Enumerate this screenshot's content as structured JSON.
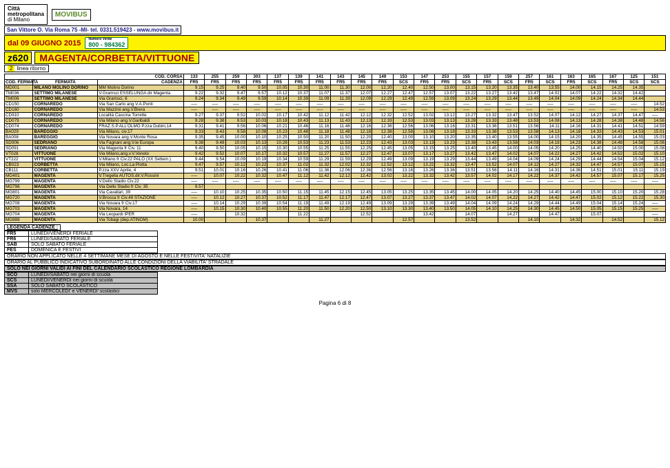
{
  "header": {
    "cm_line1": "Città",
    "cm_line2": "metropolitana",
    "cm_line3": "di Milano",
    "movibus": "MOVIBUS",
    "address": "San Vittore O. Via Roma 75 -MI- tel. 0331.519423 - www.movibus.it",
    "date_from": "dal 09 GIUGNO 2015",
    "call_label": "Numero Verde",
    "call_num": "800 - 984362",
    "line_code": "z620",
    "line_name": "MAGENTA/CORBETTA/VITTUONE",
    "line_sub_num": "2",
    "line_sub_txt": "linea ritorno"
  },
  "table": {
    "hdr_corsa": "COD. CORSA",
    "hdr_codferm": "COD. FERMATA",
    "hdr_ferm": "FERMATA",
    "hdr_cadenza": "CADENZA",
    "corsa": [
      "133",
      "255",
      "259",
      "303",
      "137",
      "139",
      "141",
      "143",
      "145",
      "149",
      "153",
      "147",
      "253",
      "155",
      "157",
      "159",
      "257",
      "161",
      "163",
      "165",
      "167",
      "125",
      "151"
    ],
    "cadenza": [
      "FR5",
      "FR5",
      "FR5",
      "FR5",
      "FR5",
      "FR5",
      "FR5",
      "FR5",
      "FR5",
      "FR5",
      "SCS",
      "FR5",
      "FR5",
      "SCS",
      "FR5",
      "SCS",
      "FR5",
      "SCS",
      "FR5",
      "SCS",
      "FR5",
      "SCS",
      "SCS"
    ],
    "rows": [
      {
        "alt": true,
        "code": "MD001",
        "stop": "MILANO MOLINO DORINO",
        "via": "MM Molino Dorino",
        "t": [
          "9.15",
          "9.25",
          "9.40",
          "9.50",
          "10.05",
          "10.30",
          "11.00",
          "11.30",
          "12.00",
          "12.20",
          "12.40",
          "12.50",
          "13.00",
          "13.15",
          "13.20",
          "13.35",
          "13.40",
          "13.55",
          "14.00",
          "14.15",
          "14.25",
          "14.35",
          ""
        ]
      },
      {
        "alt": false,
        "code": "TM036",
        "stop": "SETTIMO MILANESE",
        "via": "V.Gramsci ESSELUNGA dir Magenta",
        "t": [
          "9.22",
          "9.32",
          "9.47",
          "9.57",
          "10.12",
          "10.37",
          "11.07",
          "11.37",
          "12.07",
          "12.27",
          "12.47",
          "12.57",
          "13.07",
          "13.22",
          "13.27",
          "13.42",
          "13.47",
          "14.02",
          "14.07",
          "14.22",
          "14.32",
          "14.42",
          ""
        ]
      },
      {
        "alt": true,
        "code": "TM006",
        "stop": "SETTIMO MILANESE",
        "via": "Via Gramsci, 6",
        "t": [
          "9.24",
          "9.34",
          "9.49",
          "9.59",
          "10.14",
          "10.39",
          "11.09",
          "11.39",
          "12.09",
          "12.29",
          "12.49",
          "12.59",
          "13.09",
          "13.24",
          "13.29",
          "13.44",
          "13.49",
          "14.04",
          "14.09",
          "14.24",
          "14.34",
          "14.44",
          ""
        ]
      },
      {
        "alt": false,
        "code": "CD150",
        "stop": "CORNAREDO",
        "via": "Via San Carlo ang.V.A.Ponti",
        "t": [
          "-----",
          "-----",
          "-----",
          "-----",
          "-----",
          "-----",
          "-----",
          "-----",
          "-----",
          "-----",
          "-----",
          "-----",
          "-----",
          "-----",
          "-----",
          "-----",
          "-----",
          "-----",
          "-----",
          "-----",
          "-----",
          "-----",
          "14.52"
        ]
      },
      {
        "alt": true,
        "code": "CD160",
        "stop": "CORNAREDO",
        "via": "Via Mazzini ang.V.Brera",
        "t": [
          "-----",
          "-----",
          "-----",
          "-----",
          "-----",
          "-----",
          "-----",
          "-----",
          "-----",
          "-----",
          "-----",
          "-----",
          "-----",
          "-----",
          "-----",
          "-----",
          "-----",
          "-----",
          "-----",
          "-----",
          "-----",
          "-----",
          "14.53"
        ]
      },
      {
        "alt": false,
        "code": "CD910",
        "stop": "CORNAREDO",
        "via": "Località Cascina Torrette",
        "t": [
          "9.27",
          "9.37",
          "9.52",
          "10.02",
          "10.17",
          "10.42",
          "11.12",
          "11.42",
          "12.12",
          "12.32",
          "12.52",
          "13.02",
          "13.12",
          "13.27",
          "13.32",
          "13.47",
          "13.52",
          "14.07",
          "14.12",
          "14.27",
          "14.37",
          "14.47",
          "-----"
        ]
      },
      {
        "alt": true,
        "code": "CD079",
        "stop": "CORNAREDO",
        "via": "Via Milano ang.V.Garibaldi",
        "t": [
          "9.28",
          "9.38",
          "9.53",
          "10.03",
          "10.18",
          "10.43",
          "11.13",
          "11.43",
          "12.13",
          "12.33",
          "12.53",
          "13.03",
          "13.13",
          "13.28",
          "13.33",
          "13.48",
          "13.53",
          "14.08",
          "14.13",
          "14.28",
          "14.38",
          "14.48",
          "14.56"
        ]
      },
      {
        "alt": false,
        "code": "CD074",
        "stop": "CORNAREDO",
        "via": "FRAZ.S.P.ALL'OLMO P.zza Dubini,14",
        "t": [
          "9.31",
          "9.41",
          "9.56",
          "10.06",
          "10.21",
          "10.46",
          "11.16",
          "11.46",
          "12.16",
          "12.36",
          "12.56",
          "13.06",
          "13.16",
          "13.31",
          "13.36",
          "13.51",
          "13.56",
          "14.11",
          "14.16",
          "14.31",
          "14.41",
          "14.51",
          "14.59"
        ]
      },
      {
        "alt": true,
        "code": "BA029",
        "stop": "BAREGGIO",
        "via": "Via Milano, civ.17",
        "t": [
          "9.33",
          "9.43",
          "9.58",
          "10.08",
          "10.23",
          "10.48",
          "11.18",
          "11.48",
          "12.18",
          "12.38",
          "12.58",
          "13.08",
          "13.18",
          "13.33",
          "13.38",
          "13.53",
          "13.58",
          "14.13",
          "14.18",
          "14.33",
          "14.43",
          "14.53",
          "15.01"
        ]
      },
      {
        "alt": false,
        "code": "BA008",
        "stop": "BAREGGIO",
        "via": "Via Novara ang.V.Monte Rosa",
        "t": [
          "9.35",
          "9.45",
          "10.00",
          "10.10",
          "10.25",
          "10.50",
          "11.20",
          "11.50",
          "12.20",
          "12.40",
          "13.00",
          "13.10",
          "13.20",
          "13.35",
          "13.40",
          "13.55",
          "14.00",
          "14.15",
          "14.20",
          "14.35",
          "14.45",
          "14.55",
          "15.03"
        ]
      },
      {
        "alt": true,
        "code": "SD006",
        "stop": "SEDRIANO",
        "via": "Via Fagnani ang.V.le Europa",
        "t": [
          "9.38",
          "9.48",
          "10.03",
          "10.13",
          "10.28",
          "10.53",
          "11.23",
          "11.53",
          "12.23",
          "12.43",
          "13.03",
          "13.13",
          "13.23",
          "13.38",
          "13.43",
          "13.58",
          "14.03",
          "14.18",
          "14.23",
          "14.38",
          "14.48",
          "14.58",
          "15.06"
        ]
      },
      {
        "alt": false,
        "code": "SD091",
        "stop": "SEDRIANO",
        "via": "Via Magenta fr Civ. 11",
        "t": [
          "9.40",
          "9.50",
          "10.05",
          "10.15",
          "10.30",
          "10.55",
          "11.25",
          "11.55",
          "12.25",
          "12.45",
          "13.05",
          "13.15",
          "13.25",
          "13.40",
          "13.45",
          "14.00",
          "14.05",
          "14.20",
          "14.25",
          "14.40",
          "14.50",
          "15.00",
          "15.08"
        ]
      },
      {
        "alt": true,
        "code": "VT028",
        "stop": "VITTUONE",
        "via": "Via Milano,ang.v.V.Veneto",
        "t": [
          "9.42",
          "9.52",
          "10.07",
          "10.17",
          "10.32",
          "10.57",
          "11.27",
          "11.57",
          "12.27",
          "12.47",
          "13.07",
          "13.17",
          "13.27",
          "13.42",
          "13.47",
          "14.02",
          "14.07",
          "14.22",
          "14.27",
          "14.42",
          "14.52",
          "15.02",
          "15.10"
        ]
      },
      {
        "alt": false,
        "code": "VT222",
        "stop": "VITTUONE",
        "via": "V.Milano fr Civ.22 PALO (XX Settem.)",
        "t": [
          "9.44",
          "9.54",
          "10.09",
          "10.19",
          "10.34",
          "10.59",
          "11.29",
          "11.59",
          "12.29",
          "12.49",
          "13.09",
          "13.19",
          "13.29",
          "13.44",
          "13.49",
          "14.04",
          "14.09",
          "14.24",
          "14.29",
          "14.44",
          "14.54",
          "15.04",
          "15.12"
        ]
      },
      {
        "alt": true,
        "code": "CB023",
        "stop": "CORBETTA",
        "via": "Via Milano, Loc.La Piotta",
        "t": [
          "9.47",
          "9.57",
          "10.12",
          "10.22",
          "10.37",
          "11.02",
          "11.32",
          "12.02",
          "12.32",
          "12.52",
          "13.12",
          "13.22",
          "13.32",
          "13.47",
          "13.52",
          "14.07",
          "14.12",
          "14.27",
          "14.32",
          "14.47",
          "14.57",
          "15.07",
          "15.15"
        ]
      },
      {
        "alt": false,
        "code": "CB111",
        "stop": "CORBETTA",
        "via": "P.zza XXV Aprile, 4",
        "t": [
          "9.51",
          "10.01",
          "10.16",
          "10.26",
          "10.41",
          "11.06",
          "11.36",
          "12.06",
          "12.36",
          "12.56",
          "13.16",
          "13.26",
          "13.36",
          "13.51",
          "13.56",
          "14.11",
          "14.16",
          "14.31",
          "14.36",
          "14.51",
          "15.01",
          "15.11",
          "15.19"
        ]
      },
      {
        "alt": true,
        "code": "MG401",
        "stop": "MAGENTA",
        "via": "V.Tregella AUTOS.dir.V.Rossini",
        "t": [
          "-----",
          "10.07",
          "10.22",
          "10.32",
          "10.47",
          "11.12",
          "11.42",
          "12.12",
          "12.42",
          "13.02",
          "13.22",
          "13.32",
          "13.42",
          "13.57",
          "14.02",
          "14.17",
          "14.22",
          "14.37",
          "14.42",
          "14.57",
          "15.07",
          "15.17",
          "15.25"
        ]
      },
      {
        "alt": false,
        "code": "MG799",
        "stop": "MAGENTA",
        "via": "V.Dello Stadio Civ.22",
        "t": [
          "-----",
          "-----",
          "-----",
          "-----",
          "-----",
          "-----",
          "-----",
          "-----",
          "-----",
          "-----",
          "-----",
          "-----",
          "-----",
          "-----",
          "-----",
          "-----",
          "-----",
          "-----",
          "-----",
          "-----",
          "-----",
          "-----",
          "-----"
        ]
      },
      {
        "alt": true,
        "code": "MG796",
        "stop": "MAGENTA",
        "via": "Via Dello Stadio fr Civ. 35",
        "t": [
          "9.57",
          "",
          "",
          "",
          "",
          "",
          "",
          "",
          "",
          "",
          "",
          "",
          "",
          "",
          "",
          "",
          "",
          "",
          "",
          "",
          "",
          "",
          ""
        ]
      },
      {
        "alt": false,
        "code": "MG801",
        "stop": "MAGENTA",
        "via": "Via Cavallari, 39",
        "t": [
          "-----",
          "10.10",
          "10.25",
          "10.35",
          "10.50",
          "11.15",
          "11.45",
          "12.15",
          "12.45",
          "13.05",
          "13.25",
          "13.35",
          "13.45",
          "14.00",
          "14.05",
          "14.20",
          "14.25",
          "14.40",
          "14.45",
          "15.00",
          "15.10",
          "15.20",
          "15.28"
        ]
      },
      {
        "alt": true,
        "code": "MG720",
        "stop": "MAGENTA",
        "via": "V.Brocca fr Civ.49 STAZIONE",
        "t": [
          "-----",
          "10.12",
          "10.27",
          "10.37",
          "10.52",
          "11.17",
          "11.47",
          "12.17",
          "12.47",
          "13.07",
          "13.27",
          "13.37",
          "13.47",
          "14.02",
          "14.07",
          "14.22",
          "14.27",
          "14.42",
          "14.47",
          "15.02",
          "15.12",
          "15.22",
          "15.30"
        ]
      },
      {
        "alt": false,
        "code": "MG708",
        "stop": "MAGENTA",
        "via": "Via Novara fr Civ.17",
        "t": [
          "-----",
          "10.14",
          "10.29",
          "10.39",
          "10.54",
          "11.19",
          "11.49",
          "12.19",
          "12.49",
          "13.09",
          "13.29",
          "13.39",
          "13.49",
          "14.04",
          "14.09",
          "14.24",
          "14.29",
          "14.44",
          "14.49",
          "15.04",
          "15.14",
          "15.24",
          "-----"
        ]
      },
      {
        "alt": true,
        "code": "MG703",
        "stop": "MAGENTA",
        "via": "Via Novara, 14",
        "t": [
          "-----",
          "10.15",
          "10.30",
          "10.40",
          "10.55",
          "11.20",
          "11.50",
          "12.20",
          "12.50",
          "13.10",
          "13.30",
          "13.40",
          "13.50",
          "14.05",
          "14.10",
          "14.25",
          "14.30",
          "14.45",
          "14.50",
          "15.05",
          "15.15",
          "15.25",
          "-----"
        ]
      },
      {
        "alt": false,
        "code": "MG704",
        "stop": "MAGENTA",
        "via": "Via Leopardi IPER",
        "t": [
          "-----",
          "",
          "10.32",
          "",
          "",
          "11.22",
          "",
          "",
          "12.52",
          "",
          "",
          "13.42",
          "",
          "14.07",
          "",
          "14.27",
          "",
          "14.47",
          "",
          "15.07",
          "",
          "",
          "-----"
        ]
      },
      {
        "alt": true,
        "code": "MG888",
        "stop": "MAGENTA",
        "via": "Via Tobagi (dep.ATINOM)",
        "t": [
          "10.00",
          "",
          "",
          "10.37",
          "",
          "",
          "11.27",
          "",
          "",
          "",
          "12.57",
          "",
          "",
          "13.52",
          "",
          "",
          "14.10",
          "",
          "14.32",
          "",
          "14.52",
          "",
          "15.12"
        ]
      }
    ]
  },
  "legend": {
    "title": "LEGENDA CADENZE :",
    "rows": [
      {
        "k": "FR5",
        "v": "LUNEDI/VENERDI FERIALE"
      },
      {
        "k": "FR6",
        "v": "LUNEDI/SABATO FERIALE"
      },
      {
        "k": "SAB",
        "v": "SOLO SABATO FERIALE"
      },
      {
        "k": "FES",
        "v": "DOMENICA E FESTIVI"
      }
    ],
    "note1": "ORARIO NON APPLICATO NELLE 4 SETTIMANE MESE DI AGOSTO E NELLE FESTIVITA' NATALIZIE",
    "note2": "ORARIO AL PUBBLICO INDICATIVO SUBORDINATO ALLE CONDIZIONI DELLA VIABILITA' STRADALE",
    "note_hl": "SOLO NEI GIORNI VALIDI AI FINI DEL CALENDARIO SCOLASTICO REGIONE LOMBARDIA",
    "rows2": [
      {
        "k": "SCO",
        "v": "LUNEDI/SABATO nei giorni di scuola"
      },
      {
        "k": "SCS",
        "v": "LUNEDI/VENERDI nei giorni di scuola"
      },
      {
        "k": "SSA",
        "v": "SOLO SABATO SCOLASTICO"
      },
      {
        "k": "MVS",
        "v": "solo MERCOLEDI' e VENERDI' scolastici"
      }
    ]
  },
  "footer": {
    "pagina": "Pagina 6 di 8"
  },
  "colors": {
    "yellow": "#fff200",
    "alt_row": "#e6d490",
    "dark_red": "#a00000",
    "grey": "#c0c0c0"
  }
}
